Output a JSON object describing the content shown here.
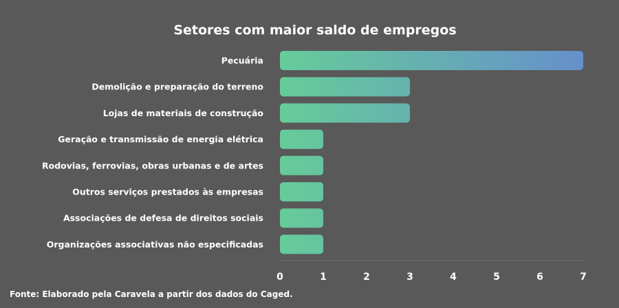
{
  "chart_data": {
    "type": "bar",
    "orientation": "horizontal",
    "title": "Setores com maior saldo de empregos",
    "categories": [
      "Pecuária",
      "Demolição e preparação do terreno",
      "Lojas de materiais de construção",
      "Geração e transmissão de energia elétrica",
      "Rodovias, ferrovias, obras urbanas e de artes",
      "Outros serviços prestados às empresas",
      "Associações de defesa de direitos sociais",
      "Organizações associativas não especificadas"
    ],
    "values": [
      7,
      3,
      3,
      1,
      1,
      1,
      1,
      1
    ],
    "xlim": [
      0,
      7
    ],
    "xticks": [
      "0",
      "1",
      "2",
      "3",
      "4",
      "5",
      "6",
      "7"
    ],
    "xlabel": "",
    "ylabel": "",
    "grid": false,
    "legend": "none",
    "colors": {
      "background": "#595959",
      "bar_start": "#66cc99",
      "bar_end": "#6690cc",
      "text": "#ffffff"
    }
  },
  "source": "Fonte: Elaborado pela Caravela a partir dos dados do Caged."
}
